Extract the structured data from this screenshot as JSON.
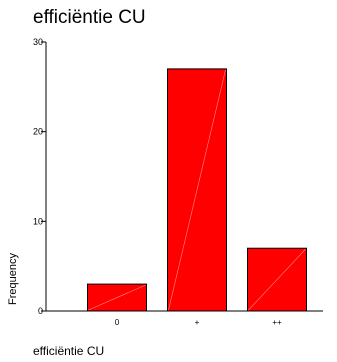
{
  "chart_data": {
    "type": "bar",
    "title": "efficiëntie CU",
    "xlabel": "efficiëntie CU",
    "ylabel": "Frequency",
    "categories": [
      "0",
      "+",
      "++"
    ],
    "values": [
      3,
      27,
      7
    ],
    "ylim": [
      0,
      30
    ],
    "yticks": [
      0,
      10,
      20,
      30
    ],
    "grid": false,
    "bar_color": "#ff0000"
  }
}
